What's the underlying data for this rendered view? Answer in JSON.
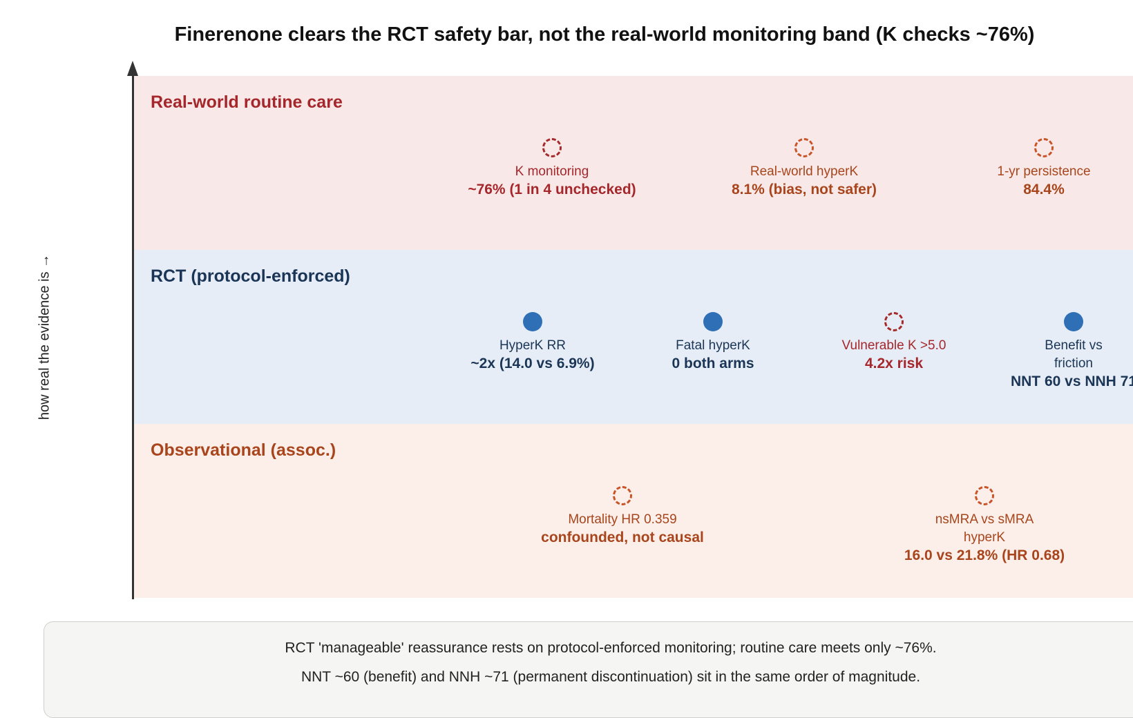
{
  "title": "Finerenone clears the RCT safety bar, not the real-world monitoring band (K checks ~76%)",
  "y_axis_label": "how real the evidence is →",
  "bands": {
    "real_world": {
      "title": "Real-world routine care",
      "nodes": [
        {
          "label": "K monitoring",
          "value": "~76% (1 in 4 unchecked)"
        },
        {
          "label": "Real-world hyperK",
          "value": "8.1% (bias, not safer)"
        },
        {
          "label": "1-yr persistence",
          "value": "84.4%"
        }
      ]
    },
    "rct": {
      "title": "RCT (protocol-enforced)",
      "nodes": [
        {
          "label": "HyperK RR",
          "value": "~2x (14.0 vs 6.9%)"
        },
        {
          "label": "Fatal hyperK",
          "value": "0 both arms"
        },
        {
          "label": "Vulnerable K >5.0",
          "value": "4.2x risk"
        },
        {
          "label": "Benefit vs friction",
          "value": "NNT 60 vs NNH 71"
        }
      ]
    },
    "observational": {
      "title": "Observational (assoc.)",
      "nodes": [
        {
          "label": "Mortality HR 0.359",
          "value": "confounded, not causal"
        },
        {
          "label": "nsMRA vs sMRA hyperK",
          "value": "16.0 vs 21.8% (HR 0.68)"
        }
      ]
    }
  },
  "notes": [
    "RCT 'manageable' reassurance rests on protocol-enforced monitoring; routine care meets only ~76%.",
    "NNT ~60 (benefit) and NNH ~71 (permanent discontinuation) sit in the same order of magnitude."
  ],
  "colors": {
    "real_world_band": "#f8e9e8",
    "rct_band": "#e6edf6",
    "observational_band": "#fcefe9",
    "real_world_text": "#a5262b",
    "rct_text": "#1b3556",
    "observational_text": "#a8451c",
    "rct_marker": "#2e6fb6"
  }
}
